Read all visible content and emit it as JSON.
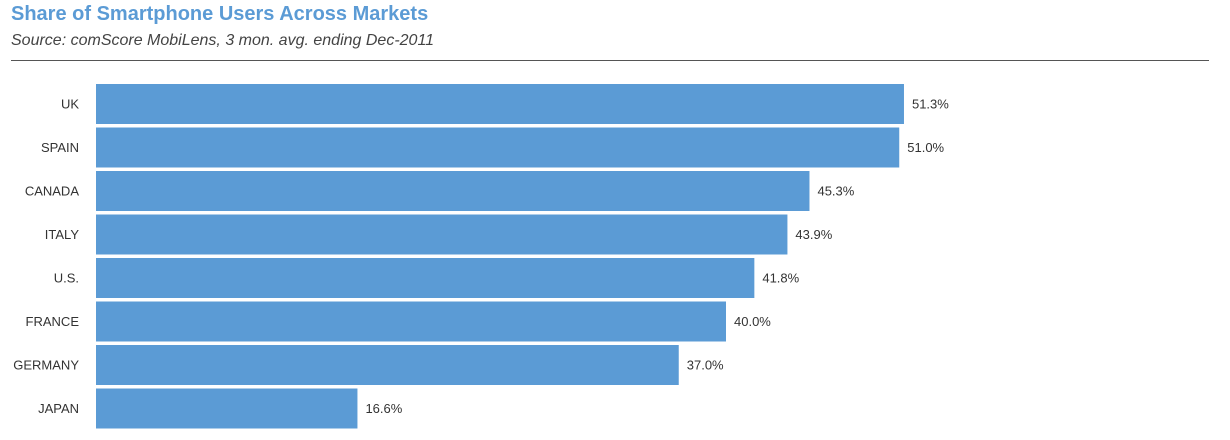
{
  "header": {
    "title": "Share of Smartphone Users Across Markets",
    "subtitle": "Source: comScore MobiLens, 3 mon. avg. ending Dec-2011"
  },
  "chart_data": {
    "type": "bar",
    "orientation": "horizontal",
    "title": "Share of Smartphone Users Across Markets",
    "subtitle": "Source: comScore MobiLens, 3 mon. avg. ending Dec-2011",
    "categories": [
      "UK",
      "SPAIN",
      "CANADA",
      "ITALY",
      "U.S.",
      "FRANCE",
      "GERMANY",
      "JAPAN"
    ],
    "values": [
      51.3,
      51.0,
      45.3,
      43.9,
      41.8,
      40.0,
      37.0,
      16.6
    ],
    "value_labels": [
      "51.3%",
      "51.0%",
      "45.3%",
      "43.9%",
      "41.8%",
      "40.0%",
      "37.0%",
      "16.6%"
    ],
    "xlabel": "",
    "ylabel": "",
    "unit": "%",
    "xlim": [
      0,
      60
    ],
    "grid": false,
    "legend": "none",
    "colors": {
      "bar": "#5b9bd5",
      "title": "#5b9bd5",
      "text": "#333333"
    }
  }
}
